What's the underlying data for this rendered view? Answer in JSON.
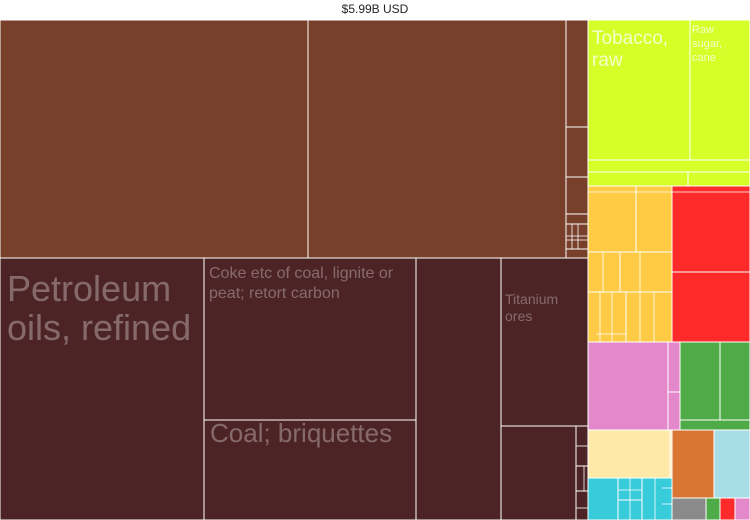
{
  "title": "$5.99B USD",
  "colors": {
    "mineral": "#783f2a",
    "fuel": "#4d2426",
    "vegetable": "#d6ff2a",
    "foodstuff": "#ffcb45",
    "animal": "#ff2a2a",
    "chemical": "#e389cb",
    "metal": "#4fab48",
    "textile": "#ffe9a8",
    "machinery": "#d97634",
    "transport": "#a8dde6",
    "stone": "#38cbd9",
    "misc": "#8a8a8a"
  },
  "chart_data": {
    "type": "treemap",
    "title": "$5.99B USD",
    "labels": {
      "t1": "Petroleum oils, refined",
      "t2": "Coke etc of coal, lignite or peat; retort carbon",
      "t3": "Coal; briquettes",
      "t4": "Titanium ores",
      "t5": "Tobacco, raw",
      "t6": "Raw sugar, cane"
    }
  }
}
